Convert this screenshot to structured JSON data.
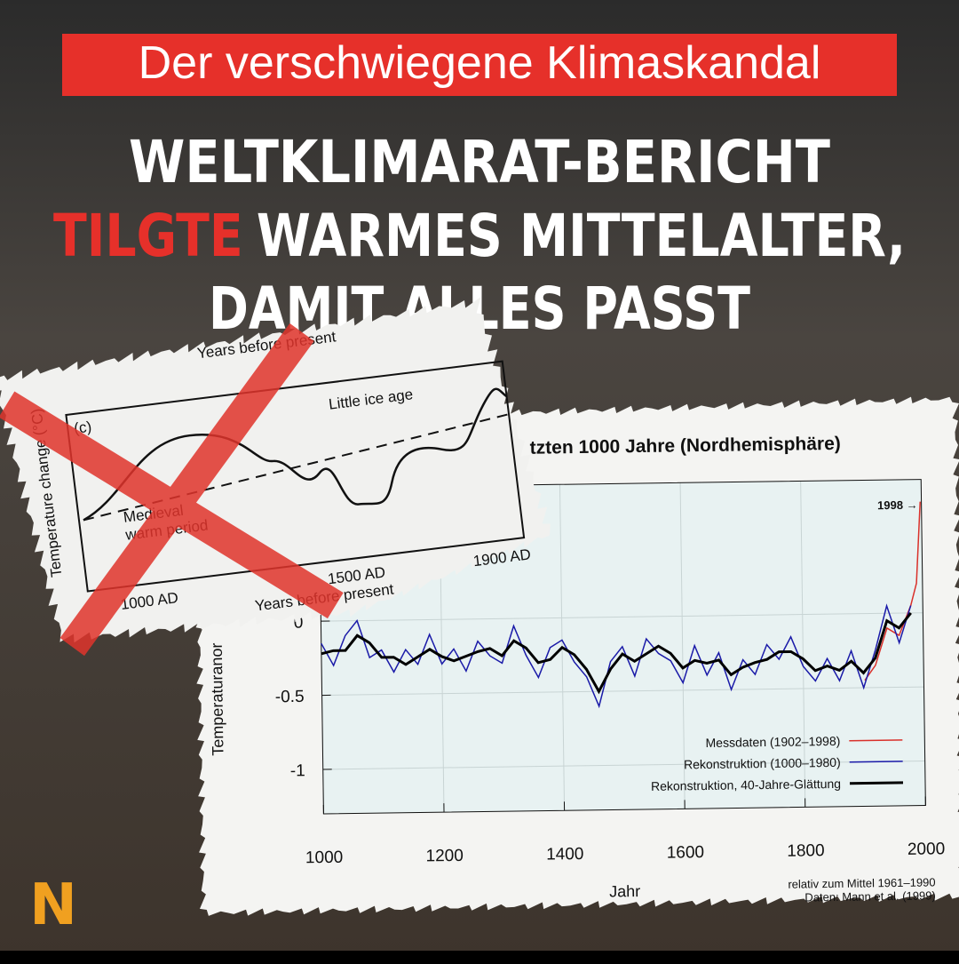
{
  "banner": "Der verschwiegene Klimaskandal",
  "headline": {
    "line1": "WELTKLIMARAT-BERICHT",
    "highlight": "TILGTE",
    "line2": "WARMES MITTELALTER,",
    "line3": "DAMIT ALLES PASST"
  },
  "logo": "N",
  "clipping": {
    "top_label": "Years before present",
    "panel": "(c)",
    "little_ice_age": "Little ice age",
    "medieval_1": "Medieval",
    "medieval_2": "warm period",
    "y_label": "Temperature change (°C)",
    "ticks": [
      "1000 AD",
      "1500 AD",
      "1900 AD"
    ],
    "x_label": "Years before present"
  },
  "chart_data": {
    "type": "line",
    "title": "tzten 1000 Jahre (Nordhemisphäre)",
    "y_label": "Temperaturanor",
    "x_label": "Jahr",
    "note_1": "relativ zum Mittel 1961–1990",
    "note_2": "Daten: Mann et al. (1999)",
    "annotation": "1998 →",
    "xlim": [
      1000,
      2000
    ],
    "xticks": [
      1000,
      1200,
      1400,
      1600,
      1800,
      2000
    ],
    "ylim": [
      -1.3,
      0.9
    ],
    "yticks": [
      0,
      -0.5,
      -1
    ],
    "grid": true,
    "series": [
      {
        "name": "Messdaten (1902–1998)",
        "color": "#d9302a",
        "x": [
          1902,
          1920,
          1940,
          1960,
          1980,
          1990,
          1998
        ],
        "values": [
          -0.45,
          -0.35,
          -0.1,
          -0.15,
          0.05,
          0.2,
          0.75
        ]
      },
      {
        "name": "Rekonstruktion (1000–1980)",
        "color": "#1a1aa8",
        "x": [
          1000,
          1020,
          1040,
          1060,
          1080,
          1100,
          1120,
          1140,
          1160,
          1180,
          1200,
          1220,
          1240,
          1260,
          1280,
          1300,
          1320,
          1340,
          1360,
          1380,
          1400,
          1420,
          1440,
          1460,
          1480,
          1500,
          1520,
          1540,
          1560,
          1580,
          1600,
          1620,
          1640,
          1660,
          1680,
          1700,
          1720,
          1740,
          1760,
          1780,
          1800,
          1820,
          1840,
          1860,
          1880,
          1900,
          1920,
          1940,
          1960,
          1980
        ],
        "values": [
          -0.15,
          -0.3,
          -0.1,
          0.0,
          -0.25,
          -0.2,
          -0.35,
          -0.2,
          -0.3,
          -0.1,
          -0.3,
          -0.2,
          -0.35,
          -0.15,
          -0.25,
          -0.3,
          -0.05,
          -0.25,
          -0.4,
          -0.2,
          -0.15,
          -0.3,
          -0.4,
          -0.6,
          -0.3,
          -0.2,
          -0.4,
          -0.15,
          -0.25,
          -0.3,
          -0.45,
          -0.2,
          -0.4,
          -0.25,
          -0.5,
          -0.3,
          -0.4,
          -0.2,
          -0.3,
          -0.15,
          -0.35,
          -0.45,
          -0.3,
          -0.45,
          -0.25,
          -0.5,
          -0.25,
          0.05,
          -0.2,
          0.05
        ]
      },
      {
        "name": "Rekonstruktion, 40-Jahre-Glättung",
        "color": "#000000",
        "x": [
          1000,
          1020,
          1040,
          1060,
          1080,
          1100,
          1120,
          1140,
          1160,
          1180,
          1200,
          1220,
          1240,
          1260,
          1280,
          1300,
          1320,
          1340,
          1360,
          1380,
          1400,
          1420,
          1440,
          1460,
          1480,
          1500,
          1520,
          1540,
          1560,
          1580,
          1600,
          1620,
          1640,
          1660,
          1680,
          1700,
          1720,
          1740,
          1760,
          1780,
          1800,
          1820,
          1840,
          1860,
          1880,
          1900,
          1920,
          1940,
          1960,
          1980
        ],
        "values": [
          -0.22,
          -0.2,
          -0.2,
          -0.1,
          -0.15,
          -0.25,
          -0.25,
          -0.3,
          -0.25,
          -0.2,
          -0.25,
          -0.28,
          -0.25,
          -0.22,
          -0.2,
          -0.25,
          -0.15,
          -0.2,
          -0.3,
          -0.28,
          -0.2,
          -0.25,
          -0.35,
          -0.5,
          -0.35,
          -0.25,
          -0.3,
          -0.25,
          -0.2,
          -0.25,
          -0.35,
          -0.3,
          -0.32,
          -0.3,
          -0.4,
          -0.35,
          -0.32,
          -0.3,
          -0.25,
          -0.25,
          -0.3,
          -0.38,
          -0.35,
          -0.38,
          -0.32,
          -0.4,
          -0.3,
          -0.05,
          -0.1,
          0.0
        ]
      }
    ]
  }
}
